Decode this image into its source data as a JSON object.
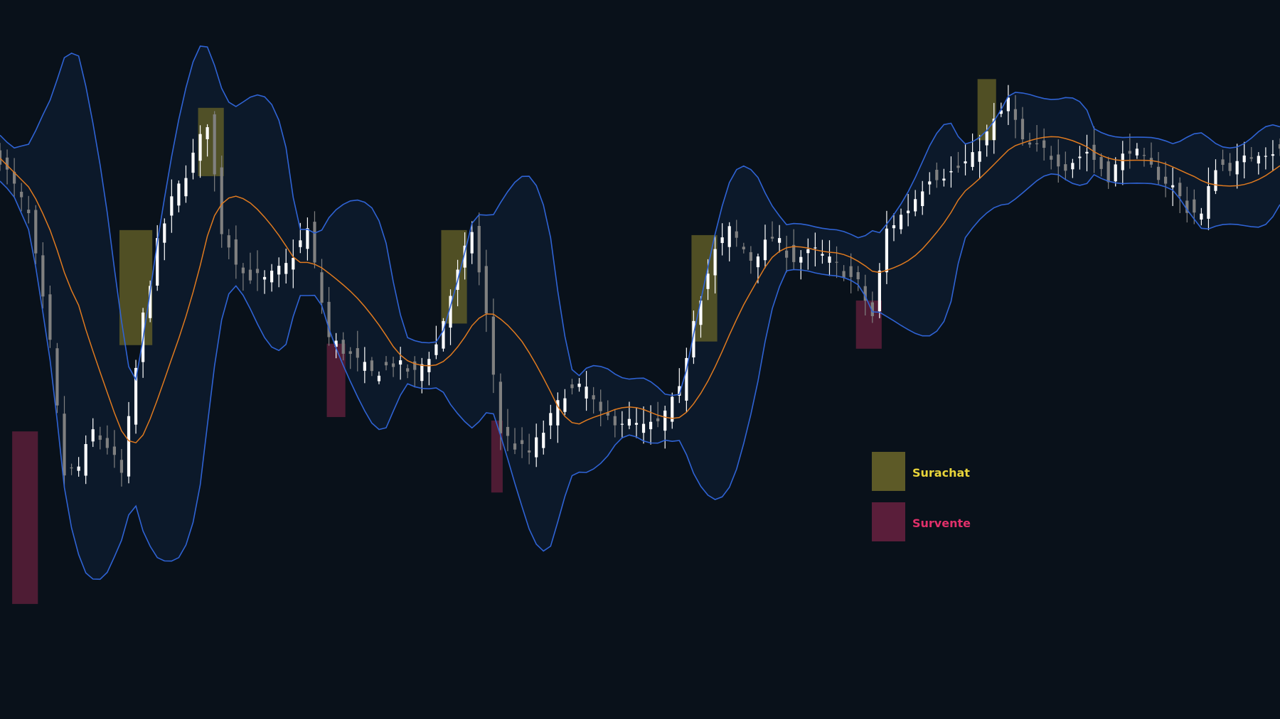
{
  "legend": {
    "overbought_label": "Surachat",
    "oversold_label": "Survente"
  },
  "chart_data": {
    "type": "candlestick",
    "indicator": "bollinger-bands",
    "title": "",
    "xlabel": "",
    "ylabel": "",
    "axes_visible": false,
    "grid": false,
    "ylim": [
      0,
      1000
    ],
    "x_count": 180,
    "legend_placement": "center-right",
    "colors": {
      "background": "#09111a",
      "band_fill": "#0d1a2b",
      "band_line": "#2f63d4",
      "middle_line": "#e07a1f",
      "candle_up": "#ffffff",
      "candle_down": "#808080",
      "overbought_zone": "#5d5a27",
      "oversold_zone": "#5a1e3a",
      "overbought_text": "#e8d43a",
      "oversold_text": "#e0306a"
    },
    "close_series": [
      [
        0,
        780
      ],
      [
        4,
        700
      ],
      [
        7,
        520
      ],
      [
        9,
        340
      ],
      [
        11,
        350
      ],
      [
        13,
        400
      ],
      [
        15,
        380
      ],
      [
        17,
        340
      ],
      [
        20,
        560
      ],
      [
        22,
        660
      ],
      [
        24,
        720
      ],
      [
        26,
        760
      ],
      [
        29,
        830
      ],
      [
        31,
        680
      ],
      [
        34,
        620
      ],
      [
        37,
        610
      ],
      [
        40,
        630
      ],
      [
        43,
        680
      ],
      [
        46,
        530
      ],
      [
        49,
        505
      ],
      [
        52,
        480
      ],
      [
        55,
        495
      ],
      [
        58,
        480
      ],
      [
        61,
        520
      ],
      [
        63,
        590
      ],
      [
        66,
        680
      ],
      [
        68,
        560
      ],
      [
        70,
        400
      ],
      [
        72,
        380
      ],
      [
        74,
        370
      ],
      [
        76,
        400
      ],
      [
        79,
        455
      ],
      [
        82,
        460
      ],
      [
        84,
        420
      ],
      [
        87,
        415
      ],
      [
        90,
        405
      ],
      [
        92,
        410
      ],
      [
        95,
        455
      ],
      [
        97,
        560
      ],
      [
        100,
        650
      ],
      [
        102,
        680
      ],
      [
        105,
        640
      ],
      [
        108,
        670
      ],
      [
        111,
        640
      ],
      [
        114,
        650
      ],
      [
        117,
        630
      ],
      [
        120,
        605
      ],
      [
        122,
        560
      ],
      [
        124,
        680
      ],
      [
        127,
        710
      ],
      [
        130,
        755
      ],
      [
        133,
        760
      ],
      [
        136,
        780
      ],
      [
        139,
        830
      ],
      [
        141,
        860
      ],
      [
        143,
        800
      ],
      [
        146,
        790
      ],
      [
        149,
        770
      ],
      [
        152,
        790
      ],
      [
        155,
        755
      ],
      [
        158,
        795
      ],
      [
        161,
        765
      ],
      [
        164,
        740
      ],
      [
        166,
        710
      ],
      [
        168,
        700
      ],
      [
        170,
        770
      ],
      [
        173,
        770
      ],
      [
        176,
        790
      ],
      [
        179,
        790
      ]
    ],
    "overbought_zones": [
      {
        "from": 17,
        "to": 21,
        "top": 680,
        "bottom": 520
      },
      {
        "from": 28,
        "to": 31,
        "top": 850,
        "bottom": 755
      },
      {
        "from": 62,
        "to": 65,
        "top": 680,
        "bottom": 550
      },
      {
        "from": 97,
        "to": 100,
        "top": 673,
        "bottom": 525
      },
      {
        "from": 137,
        "to": 139,
        "top": 890,
        "bottom": 805
      }
    ],
    "oversold_zones": [
      {
        "from": 2,
        "to": 5,
        "top": 400,
        "bottom": 160
      },
      {
        "from": 46,
        "to": 48,
        "top": 522,
        "bottom": 420
      },
      {
        "from": 69,
        "to": 70,
        "top": 415,
        "bottom": 315
      },
      {
        "from": 120,
        "to": 123,
        "top": 582,
        "bottom": 515
      }
    ]
  }
}
